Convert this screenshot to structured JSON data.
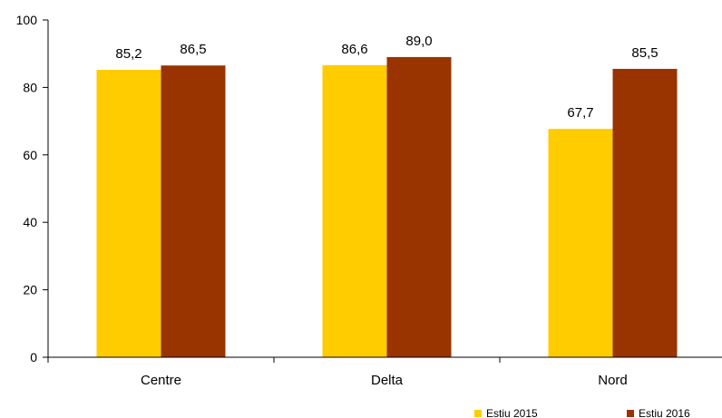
{
  "chart_data": {
    "type": "bar",
    "categories": [
      "Centre",
      "Delta",
      "Nord"
    ],
    "series": [
      {
        "name": "Estiu 2015",
        "values": [
          85.2,
          86.6,
          67.7
        ],
        "labels": [
          "85,2",
          "86,6",
          "67,7"
        ],
        "color": "#FFCC00"
      },
      {
        "name": "Estiu 2016",
        "values": [
          86.5,
          89.0,
          85.5
        ],
        "labels": [
          "86,5",
          "89,0",
          "85,5"
        ],
        "color": "#993300"
      }
    ],
    "ylim": [
      0,
      100
    ],
    "yticks": [
      0,
      20,
      40,
      60,
      80,
      100
    ],
    "ytick_labels": [
      "0",
      "20",
      "40",
      "60",
      "80",
      "100"
    ],
    "grid": false,
    "legend_position": "bottom-right"
  }
}
